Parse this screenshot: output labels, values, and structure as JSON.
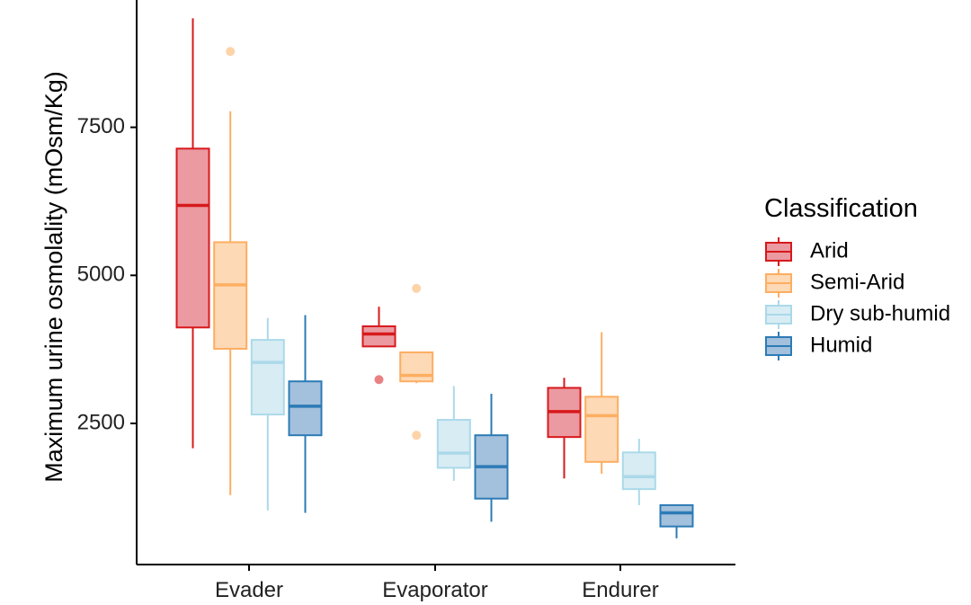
{
  "chart_data": {
    "type": "boxplot",
    "ylabel": "Maximum urine osmolality (mOsm/Kg)",
    "xlabel": "",
    "ylim": [
      200,
      9500
    ],
    "yticks": [
      2500,
      5000,
      7500
    ],
    "categories": [
      "Evader",
      "Evaporator",
      "Endurer"
    ],
    "legend": {
      "title": "Classification",
      "placement": "right"
    },
    "series": [
      {
        "name": "Arid",
        "color": "#d7191c",
        "fill": "#eb9aa1",
        "boxes": [
          {
            "category": "Evader",
            "min": 2080,
            "q1": 4120,
            "median": 6180,
            "q3": 7140,
            "max": 9340,
            "outliers": []
          },
          {
            "category": "Evaporator",
            "min": 3800,
            "q1": 3800,
            "median": 4010,
            "q3": 4140,
            "max": 4470,
            "outliers": [
              3240
            ]
          },
          {
            "category": "Endurer",
            "min": 1570,
            "q1": 2270,
            "median": 2700,
            "q3": 3100,
            "max": 3270,
            "outliers": []
          }
        ]
      },
      {
        "name": "Semi-Arid",
        "color": "#fdae61",
        "fill": "#fdd9b6",
        "boxes": [
          {
            "category": "Evader",
            "min": 1290,
            "q1": 3760,
            "median": 4840,
            "q3": 5560,
            "max": 7770,
            "outliers": [
              8780
            ]
          },
          {
            "category": "Evaporator",
            "min": 3180,
            "q1": 3210,
            "median": 3310,
            "q3": 3700,
            "max": 3700,
            "outliers": [
              4780,
              2300
            ]
          },
          {
            "category": "Endurer",
            "min": 1650,
            "q1": 1850,
            "median": 2630,
            "q3": 2950,
            "max": 4040,
            "outliers": []
          }
        ]
      },
      {
        "name": "Dry sub-humid",
        "color": "#abd9e9",
        "fill": "#d8ecf4",
        "boxes": [
          {
            "category": "Evader",
            "min": 1030,
            "q1": 2650,
            "median": 3530,
            "q3": 3910,
            "max": 4280,
            "outliers": []
          },
          {
            "category": "Evaporator",
            "min": 1530,
            "q1": 1750,
            "median": 2000,
            "q3": 2560,
            "max": 3130,
            "outliers": []
          },
          {
            "category": "Endurer",
            "min": 1120,
            "q1": 1390,
            "median": 1600,
            "q3": 2010,
            "max": 2240,
            "outliers": []
          }
        ]
      },
      {
        "name": "Humid",
        "color": "#2c7bb6",
        "fill": "#a3c0dc",
        "boxes": [
          {
            "category": "Evader",
            "min": 990,
            "q1": 2300,
            "median": 2790,
            "q3": 3210,
            "max": 4330,
            "outliers": []
          },
          {
            "category": "Evaporator",
            "min": 840,
            "q1": 1230,
            "median": 1770,
            "q3": 2300,
            "max": 3000,
            "outliers": []
          },
          {
            "category": "Endurer",
            "min": 560,
            "q1": 760,
            "median": 990,
            "q3": 1120,
            "max": 1120,
            "outliers": []
          }
        ]
      }
    ]
  }
}
